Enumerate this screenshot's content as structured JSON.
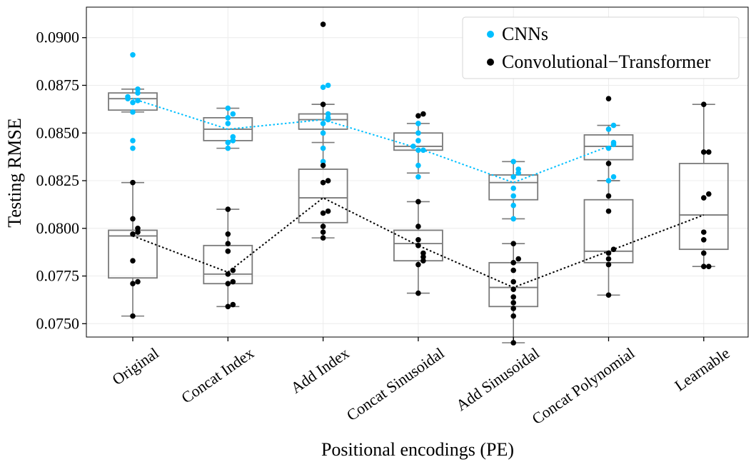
{
  "chart_data": {
    "type": "box",
    "xlabel": "Positional encodings (PE)",
    "ylabel": "Testing RMSE",
    "ylim": [
      0.0743,
      0.0916
    ],
    "yticks": [
      "0.0750",
      "0.0775",
      "0.0800",
      "0.0825",
      "0.0850",
      "0.0875",
      "0.0900"
    ],
    "yticks_values": [
      0.075,
      0.0775,
      0.08,
      0.0825,
      0.085,
      0.0875,
      0.09
    ],
    "categories": [
      "Original",
      "Concat Index",
      "Add Index",
      "Concat Sinusoidal",
      "Add Sinusoidal",
      "Concat Polynomial",
      "Learnable"
    ],
    "grid": true,
    "legend_position": "top-right",
    "series": [
      {
        "name": "CNNs",
        "color": "#00bfff",
        "boxes": [
          {
            "whisker_low": 0.0861,
            "q1": 0.0862,
            "median": 0.0868,
            "q3": 0.0871,
            "whisker_high": 0.0873
          },
          {
            "whisker_low": 0.0842,
            "q1": 0.0846,
            "median": 0.0852,
            "q3": 0.0858,
            "whisker_high": 0.0863
          },
          {
            "whisker_low": 0.0845,
            "q1": 0.0852,
            "median": 0.0857,
            "q3": 0.086,
            "whisker_high": 0.0865
          },
          {
            "whisker_low": 0.0829,
            "q1": 0.0841,
            "median": 0.0843,
            "q3": 0.085,
            "whisker_high": 0.0855
          },
          {
            "whisker_low": 0.0805,
            "q1": 0.0815,
            "median": 0.0824,
            "q3": 0.0828,
            "whisker_high": 0.0835
          },
          {
            "whisker_low": 0.0825,
            "q1": 0.0836,
            "median": 0.0843,
            "q3": 0.0849,
            "whisker_high": 0.0854
          }
        ],
        "points": [
          [
            0.0891,
            0.0873,
            0.0871,
            0.0869,
            0.0868,
            0.0867,
            0.0866,
            0.0861,
            0.0846,
            0.0842
          ],
          [
            0.0863,
            0.086,
            0.0858,
            0.0855,
            0.0848,
            0.0846,
            0.0845,
            0.0842
          ],
          [
            0.0875,
            0.0874,
            0.086,
            0.0858,
            0.0857,
            0.0855,
            0.085,
            0.0842,
            0.0835
          ],
          [
            0.0855,
            0.085,
            0.0846,
            0.0843,
            0.0841,
            0.0841,
            0.0833,
            0.0827
          ],
          [
            0.0835,
            0.0831,
            0.0829,
            0.0827,
            0.0821,
            0.0817,
            0.0812,
            0.0805
          ],
          [
            0.0854,
            0.0852,
            0.0845,
            0.0844,
            0.0842,
            0.0827,
            0.0825
          ]
        ],
        "mean_line": [
          0.0868,
          0.0852,
          0.0857,
          0.0842,
          0.0824,
          0.0843
        ]
      },
      {
        "name": "Convolutional−Transformer",
        "color": "#000000",
        "boxes": [
          {
            "whisker_low": 0.0754,
            "q1": 0.0774,
            "median": 0.0796,
            "q3": 0.0799,
            "whisker_high": 0.0824
          },
          {
            "whisker_low": 0.0759,
            "q1": 0.0771,
            "median": 0.0776,
            "q3": 0.0791,
            "whisker_high": 0.081
          },
          {
            "whisker_low": 0.0795,
            "q1": 0.0803,
            "median": 0.0816,
            "q3": 0.0831,
            "whisker_high": 0.0865
          },
          {
            "whisker_low": 0.0766,
            "q1": 0.0783,
            "median": 0.0792,
            "q3": 0.0799,
            "whisker_high": 0.0814
          },
          {
            "whisker_low": 0.074,
            "q1": 0.0759,
            "median": 0.0769,
            "q3": 0.0782,
            "whisker_high": 0.0792
          },
          {
            "whisker_low": 0.0765,
            "q1": 0.0782,
            "median": 0.0788,
            "q3": 0.0815,
            "whisker_high": 0.0825
          },
          {
            "whisker_low": 0.078,
            "q1": 0.0789,
            "median": 0.0807,
            "q3": 0.0834,
            "whisker_high": 0.0865
          }
        ],
        "points": [
          [
            0.0824,
            0.0805,
            0.08,
            0.0798,
            0.0797,
            0.0783,
            0.0772,
            0.0771,
            0.0754
          ],
          [
            0.081,
            0.0797,
            0.0792,
            0.0788,
            0.0778,
            0.0776,
            0.0772,
            0.0771,
            0.076,
            0.0759
          ],
          [
            0.0907,
            0.0865,
            0.0833,
            0.0825,
            0.0824,
            0.0809,
            0.0808,
            0.0801,
            0.0798,
            0.0795
          ],
          [
            0.086,
            0.0859,
            0.0814,
            0.0801,
            0.0794,
            0.0791,
            0.0787,
            0.0785,
            0.0783,
            0.0781,
            0.0766
          ],
          [
            0.0792,
            0.0784,
            0.0782,
            0.0778,
            0.0772,
            0.0768,
            0.0764,
            0.0761,
            0.0758,
            0.0754,
            0.074
          ],
          [
            0.0868,
            0.0834,
            0.0817,
            0.0809,
            0.0789,
            0.0787,
            0.0784,
            0.0781,
            0.0765
          ],
          [
            0.0865,
            0.084,
            0.084,
            0.0818,
            0.0816,
            0.0798,
            0.0794,
            0.0787,
            0.078,
            0.078
          ]
        ],
        "mean_line": [
          0.0796,
          0.0777,
          0.0816,
          0.0791,
          0.0769,
          0.0788,
          0.0807
        ]
      }
    ]
  }
}
